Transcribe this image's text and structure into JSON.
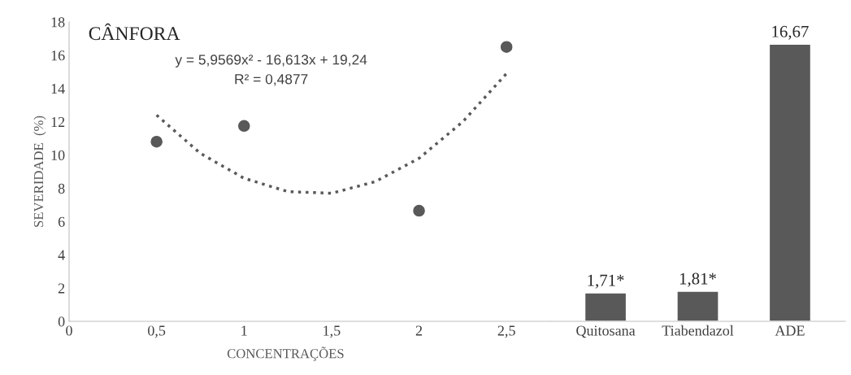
{
  "chart_data": [
    {
      "type": "scatter",
      "title": "CÂNFORA",
      "xlabel": "CONCENTRAÇÕES",
      "ylabel": "SEVERIDADE  (%)",
      "annotations": [
        "y = 5,9569x² - 16,613x + 19,24",
        "R² = 0,4877"
      ],
      "xlim": [
        0,
        2.75
      ],
      "xticks": [
        {
          "value": 0,
          "label": "0"
        },
        {
          "value": 0.5,
          "label": "0,5"
        },
        {
          "value": 1,
          "label": "1"
        },
        {
          "value": 1.5,
          "label": "1,5"
        },
        {
          "value": 2,
          "label": "2"
        },
        {
          "value": 2.5,
          "label": "2,5"
        }
      ],
      "ylim": [
        0,
        18
      ],
      "yticks": [
        0,
        2,
        4,
        6,
        8,
        10,
        12,
        14,
        16,
        18
      ],
      "grid": false,
      "legend": false,
      "series": [
        {
          "type": "scatter",
          "color": "#595959",
          "marker": "circle",
          "x": [
            0.5,
            1,
            2,
            2.5
          ],
          "values": [
            10.8,
            11.75,
            6.65,
            16.5
          ]
        },
        {
          "type": "line",
          "color": "#595959",
          "line_style": "dotted",
          "marker": "none",
          "x": [
            0.5,
            0.75,
            1,
            1.25,
            1.5,
            1.75,
            2,
            2.25,
            2.5
          ],
          "values": [
            12.4,
            10.1,
            8.6,
            7.8,
            7.7,
            8.4,
            9.8,
            12.0,
            14.9
          ]
        }
      ]
    },
    {
      "type": "bar",
      "categories": [
        "Quitosana",
        "Tiabendazol",
        "ADE"
      ],
      "values": [
        1.71,
        1.81,
        16.67
      ],
      "color": "#595959",
      "value_labels": [
        "1,71*",
        "1,81*",
        "16,67"
      ],
      "ylim": [
        0,
        18
      ],
      "tick_labels": "x",
      "grid": false
    }
  ]
}
